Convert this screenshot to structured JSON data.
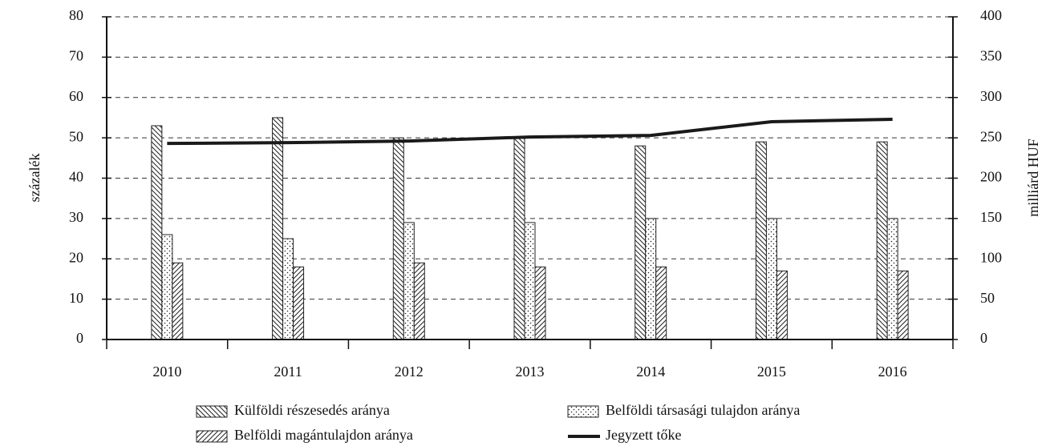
{
  "chart_data": {
    "type": "bar",
    "categories": [
      "2010",
      "2011",
      "2012",
      "2013",
      "2014",
      "2015",
      "2016"
    ],
    "series": [
      {
        "name": "Külföldi részesedés aránya",
        "color": "#222222",
        "pattern": "backslash",
        "values": [
          53,
          55,
          50,
          50,
          48,
          49,
          49
        ]
      },
      {
        "name": "Belföldi társasági tulajdon aránya",
        "color": "#222222",
        "pattern": "dots",
        "values": [
          26,
          25,
          29,
          29,
          30,
          30,
          30
        ]
      },
      {
        "name": "Belföldi magántulajdon aránya",
        "color": "#222222",
        "pattern": "slash",
        "values": [
          19,
          18,
          19,
          18,
          18,
          17,
          17
        ]
      },
      {
        "name": "Jegyzett tőke",
        "type": "line",
        "axis": "y2",
        "color": "#1a1a1a",
        "values": [
          243,
          244,
          246,
          251,
          253,
          270,
          273
        ]
      }
    ],
    "ylabel": "százalék",
    "y2label": "milliárd HUF",
    "ylim": [
      0,
      80
    ],
    "yticks": [
      0,
      10,
      20,
      30,
      40,
      50,
      60,
      70,
      80
    ],
    "y2lim": [
      0,
      400
    ],
    "y2ticks": [
      0,
      50,
      100,
      150,
      200,
      250,
      300,
      350,
      400
    ],
    "grid": true
  }
}
